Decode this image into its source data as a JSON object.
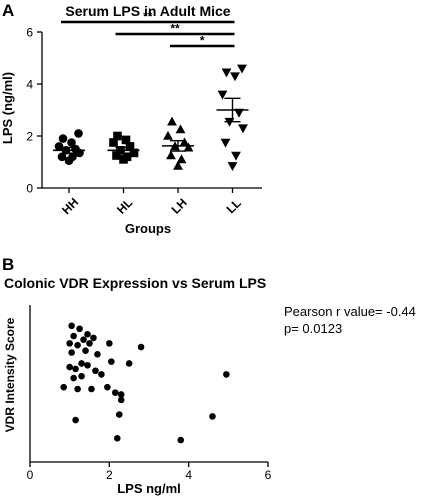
{
  "chart_data": [
    {
      "panel": "A",
      "type": "scatter",
      "title": "Serum  LPS in Adult Mice",
      "xlabel": "Groups",
      "ylabel": "LPS (ng/ml)",
      "ylim": [
        0,
        6
      ],
      "yticks": [
        0,
        2,
        4,
        6
      ],
      "grid": false,
      "categories": [
        "HH",
        "HL",
        "LH",
        "LL"
      ],
      "markers": [
        "circle",
        "square",
        "triangle-up",
        "triangle-down"
      ],
      "series": [
        {
          "values": [
            1.05,
            1.2,
            1.2,
            1.35,
            1.45,
            1.5,
            1.6,
            1.75,
            1.9,
            2.1
          ]
        },
        {
          "values": [
            1.1,
            1.2,
            1.25,
            1.35,
            1.45,
            1.6,
            1.75,
            1.85,
            2.0
          ]
        },
        {
          "values": [
            0.85,
            1.1,
            1.25,
            1.55,
            1.6,
            1.75,
            2.0,
            2.25,
            2.55
          ]
        },
        {
          "values": [
            0.85,
            1.25,
            1.75,
            2.3,
            2.55,
            2.9,
            3.6,
            4.3,
            4.45,
            4.6
          ]
        }
      ],
      "mean": [
        1.45,
        1.45,
        1.62,
        3.0
      ],
      "sem": [
        0.11,
        0.11,
        0.2,
        0.45
      ],
      "significance": [
        {
          "from": "HH",
          "to": "LL",
          "label": "**"
        },
        {
          "from": "HL",
          "to": "LL",
          "label": "**"
        },
        {
          "from": "LH",
          "to": "LL",
          "label": "*"
        }
      ]
    },
    {
      "panel": "B",
      "type": "scatter",
      "title": "Colonic VDR Expression vs Serum LPS",
      "xlabel": "LPS ng/ml",
      "ylabel": "VDR Intensity Score",
      "xlim": [
        0,
        6
      ],
      "ylim": [
        1,
        5
      ],
      "xticks": [
        0,
        2,
        4,
        6
      ],
      "grid": false,
      "annotation": [
        "Pearson r value= -0.44",
        "p= 0.0123"
      ],
      "points": [
        {
          "x": 1.05,
          "y": 4.73
        },
        {
          "x": 1.25,
          "y": 4.65
        },
        {
          "x": 1.45,
          "y": 4.5
        },
        {
          "x": 1.1,
          "y": 4.45
        },
        {
          "x": 1.35,
          "y": 4.35
        },
        {
          "x": 1.6,
          "y": 4.4
        },
        {
          "x": 1.0,
          "y": 4.25
        },
        {
          "x": 1.2,
          "y": 4.2
        },
        {
          "x": 1.5,
          "y": 4.25
        },
        {
          "x": 2.0,
          "y": 4.25
        },
        {
          "x": 2.8,
          "y": 4.15
        },
        {
          "x": 1.05,
          "y": 4.0
        },
        {
          "x": 1.4,
          "y": 4.05
        },
        {
          "x": 1.7,
          "y": 3.95
        },
        {
          "x": 2.05,
          "y": 3.75
        },
        {
          "x": 1.0,
          "y": 3.6
        },
        {
          "x": 1.15,
          "y": 3.55
        },
        {
          "x": 1.3,
          "y": 3.7
        },
        {
          "x": 1.45,
          "y": 3.65
        },
        {
          "x": 1.65,
          "y": 3.5
        },
        {
          "x": 2.5,
          "y": 3.7
        },
        {
          "x": 1.1,
          "y": 3.3
        },
        {
          "x": 1.3,
          "y": 3.35
        },
        {
          "x": 1.8,
          "y": 3.4
        },
        {
          "x": 0.85,
          "y": 3.05
        },
        {
          "x": 1.2,
          "y": 3.0
        },
        {
          "x": 1.55,
          "y": 3.0
        },
        {
          "x": 1.95,
          "y": 3.05
        },
        {
          "x": 2.15,
          "y": 2.9
        },
        {
          "x": 2.3,
          "y": 2.85
        },
        {
          "x": 2.3,
          "y": 2.7
        },
        {
          "x": 2.25,
          "y": 2.3
        },
        {
          "x": 1.15,
          "y": 2.15
        },
        {
          "x": 2.2,
          "y": 1.65
        },
        {
          "x": 3.8,
          "y": 1.6
        },
        {
          "x": 4.6,
          "y": 2.25
        },
        {
          "x": 4.95,
          "y": 3.4
        }
      ]
    }
  ],
  "labels": {
    "panel_a": "A",
    "panel_b": "B"
  }
}
